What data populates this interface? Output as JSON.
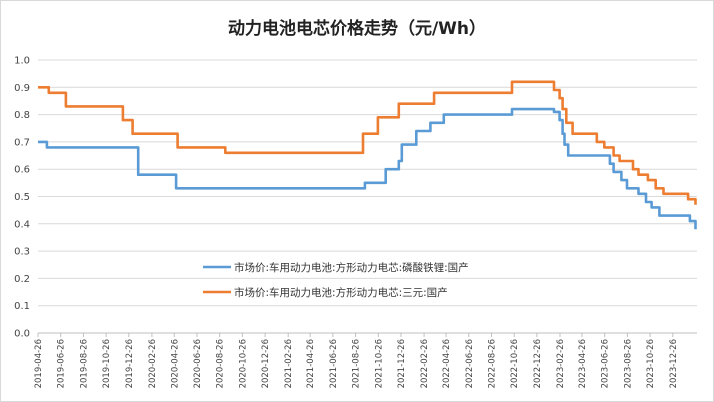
{
  "chart_data": {
    "type": "line",
    "title": "动力电池电芯价格走势（元/Wh）",
    "xlabel": "",
    "ylabel": "",
    "ylim": [
      0,
      1.0
    ],
    "yticks": [
      "0.0",
      "0.1",
      "0.2",
      "0.3",
      "0.4",
      "0.5",
      "0.6",
      "0.7",
      "0.8",
      "0.9",
      "1.0"
    ],
    "x_range": [
      "2019-04-26",
      "2024-02-29"
    ],
    "x_tick_labels": [
      "2019-04-26",
      "2019-06-26",
      "2019-08-26",
      "2019-10-26",
      "2019-12-26",
      "2020-02-26",
      "2020-04-26",
      "2020-06-26",
      "2020-08-26",
      "2020-10-26",
      "2020-12-26",
      "2021-02-26",
      "2021-04-26",
      "2021-06-26",
      "2021-08-26",
      "2021-10-26",
      "2021-12-26",
      "2022-02-26",
      "2022-04-26",
      "2022-06-26",
      "2022-08-26",
      "2022-10-26",
      "2022-12-26",
      "2023-02-26",
      "2023-04-26",
      "2023-06-26",
      "2023-08-26",
      "2023-10-26",
      "2023-12-26"
    ],
    "grid": "horizontal",
    "legend_position": "center",
    "series": [
      {
        "name": "市场价:车用动力电池:方形动力电芯:磷酸铁锂:国产",
        "color": "#5b9bd5",
        "step": true,
        "points": [
          [
            "2019-04-26",
            0.7
          ],
          [
            "2019-05-20",
            0.68
          ],
          [
            "2020-01-20",
            0.58
          ],
          [
            "2020-05-01",
            0.53
          ],
          [
            "2021-09-20",
            0.55
          ],
          [
            "2021-11-15",
            0.6
          ],
          [
            "2021-12-20",
            0.63
          ],
          [
            "2021-12-28",
            0.69
          ],
          [
            "2022-02-05",
            0.74
          ],
          [
            "2022-03-15",
            0.77
          ],
          [
            "2022-04-20",
            0.8
          ],
          [
            "2022-10-20",
            0.82
          ],
          [
            "2023-02-10",
            0.81
          ],
          [
            "2023-02-25",
            0.78
          ],
          [
            "2023-03-05",
            0.73
          ],
          [
            "2023-03-10",
            0.69
          ],
          [
            "2023-03-20",
            0.65
          ],
          [
            "2023-07-10",
            0.62
          ],
          [
            "2023-07-20",
            0.59
          ],
          [
            "2023-08-10",
            0.56
          ],
          [
            "2023-08-25",
            0.53
          ],
          [
            "2023-09-25",
            0.51
          ],
          [
            "2023-10-15",
            0.48
          ],
          [
            "2023-10-30",
            0.46
          ],
          [
            "2023-11-20",
            0.43
          ],
          [
            "2024-02-10",
            0.41
          ],
          [
            "2024-02-25",
            0.38
          ]
        ]
      },
      {
        "name": "市场价:车用动力电池:方形动力电芯:三元:国产",
        "color": "#ed7d31",
        "step": true,
        "points": [
          [
            "2019-04-26",
            0.9
          ],
          [
            "2019-05-25",
            0.88
          ],
          [
            "2019-07-10",
            0.83
          ],
          [
            "2019-12-10",
            0.78
          ],
          [
            "2020-01-05",
            0.73
          ],
          [
            "2020-05-05",
            0.68
          ],
          [
            "2020-09-10",
            0.66
          ],
          [
            "2021-09-15",
            0.73
          ],
          [
            "2021-10-25",
            0.79
          ],
          [
            "2021-12-20",
            0.84
          ],
          [
            "2022-03-25",
            0.88
          ],
          [
            "2022-10-20",
            0.92
          ],
          [
            "2023-02-10",
            0.89
          ],
          [
            "2023-02-25",
            0.86
          ],
          [
            "2023-03-05",
            0.82
          ],
          [
            "2023-03-15",
            0.77
          ],
          [
            "2023-04-01",
            0.73
          ],
          [
            "2023-06-05",
            0.7
          ],
          [
            "2023-06-25",
            0.68
          ],
          [
            "2023-07-20",
            0.65
          ],
          [
            "2023-08-05",
            0.63
          ],
          [
            "2023-09-10",
            0.6
          ],
          [
            "2023-09-25",
            0.58
          ],
          [
            "2023-10-20",
            0.56
          ],
          [
            "2023-11-10",
            0.53
          ],
          [
            "2023-12-01",
            0.51
          ],
          [
            "2024-02-05",
            0.49
          ],
          [
            "2024-02-25",
            0.47
          ]
        ]
      }
    ]
  }
}
